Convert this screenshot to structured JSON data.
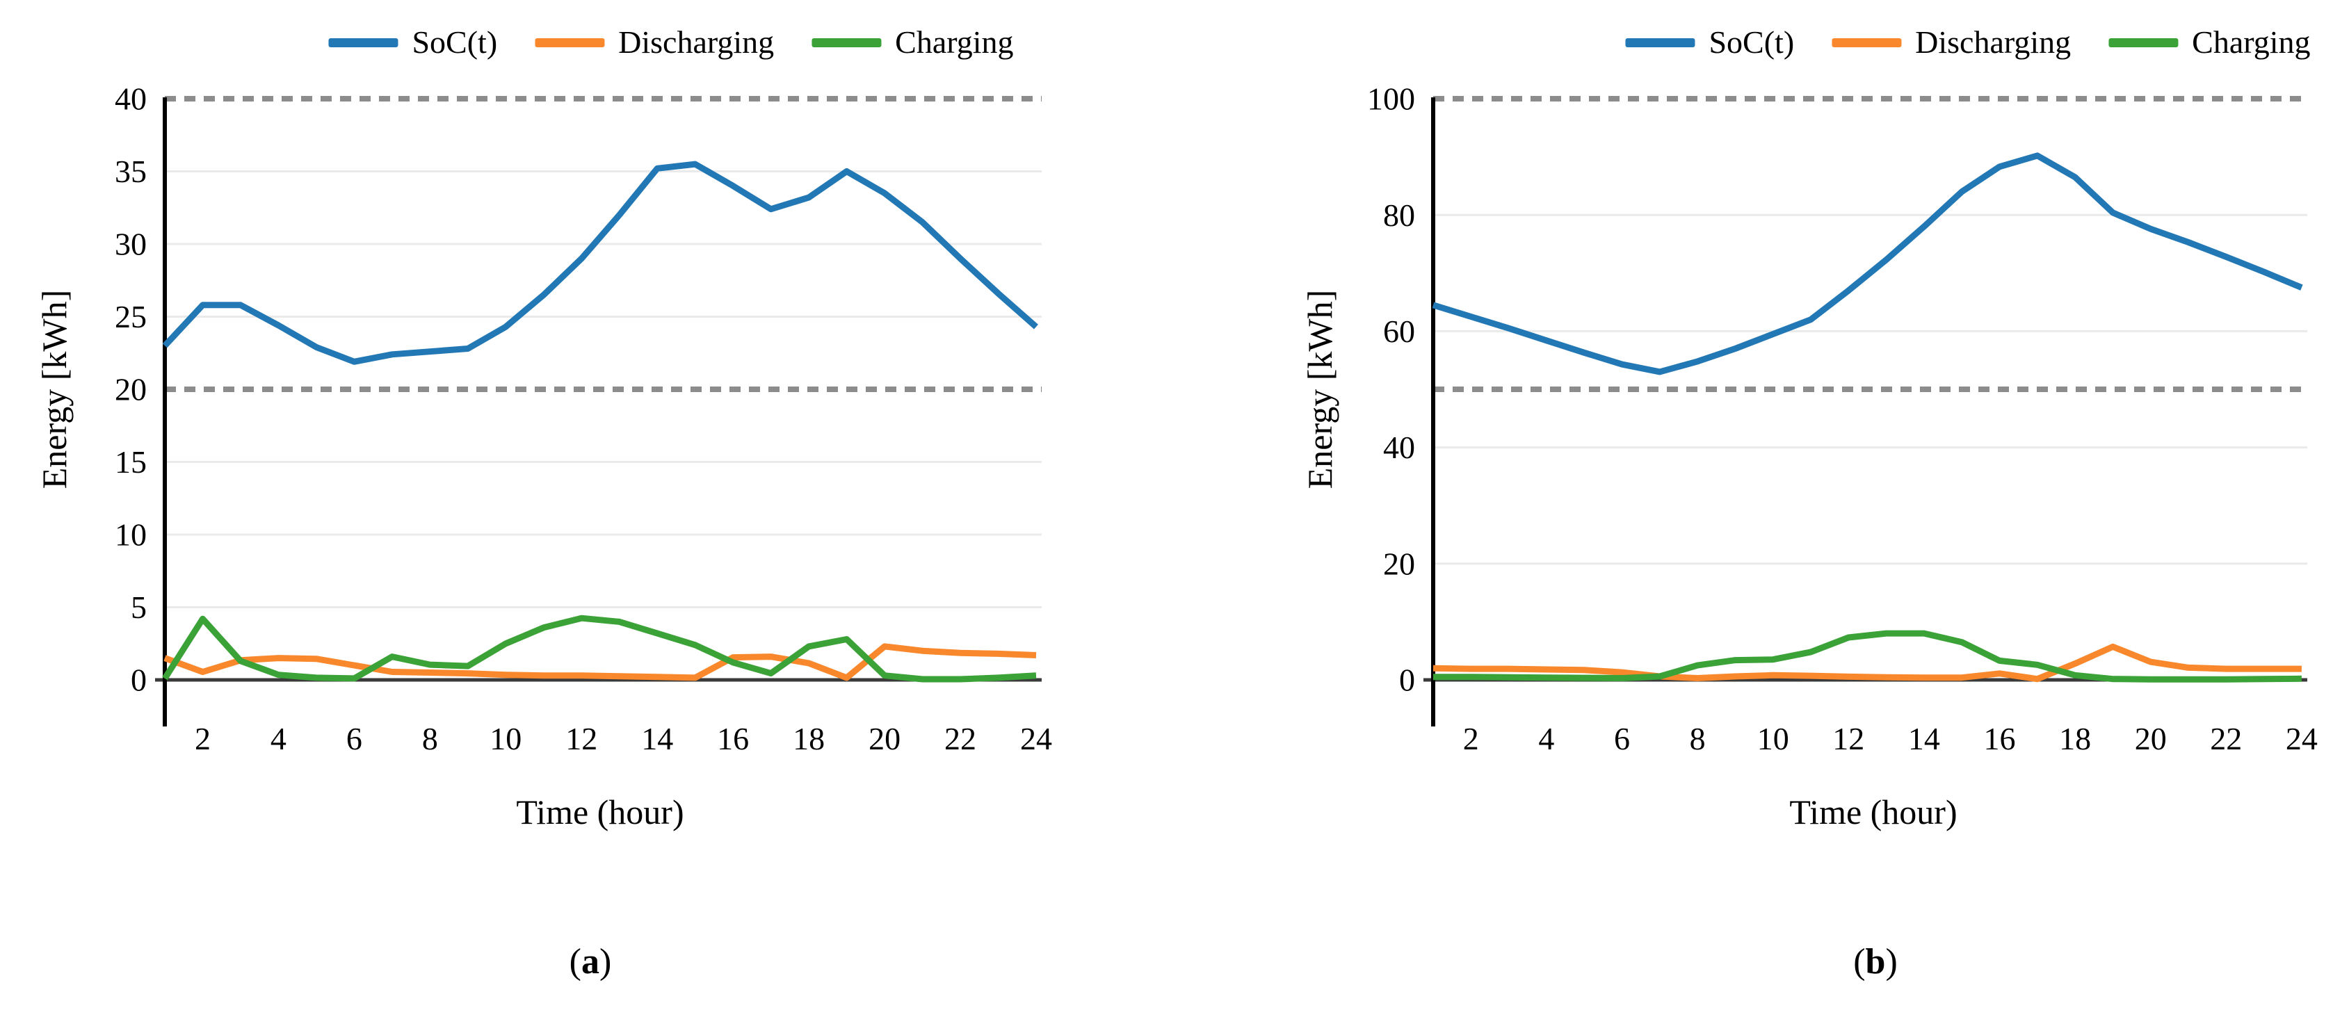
{
  "figure": {
    "background": "#ffffff",
    "description": "Two line charts of battery energy over a day"
  },
  "colors": {
    "soc": "#2277b5",
    "discharging": "#f8882b",
    "charging": "#3aa236",
    "bound_dashed": "#8c8c8c",
    "gridline": "#eaeaea",
    "baseline": "#3a3a3a",
    "axis": "#000000",
    "text": "#000000"
  },
  "legend": {
    "items": [
      {
        "name": "soc",
        "label": "SoC(t)",
        "color": "#2277b5"
      },
      {
        "name": "discharging",
        "label": "Discharging",
        "color": "#f8882b"
      },
      {
        "name": "charging",
        "label": "Charging",
        "color": "#3aa236"
      }
    ]
  },
  "sublabels": {
    "a": {
      "pre": "(",
      "letter": "a",
      "post": ")"
    },
    "b": {
      "pre": "(",
      "letter": "b",
      "post": ")"
    }
  },
  "chart_data": [
    {
      "id": "a",
      "type": "line",
      "title": "",
      "xlabel": "Time (hour)",
      "ylabel": "Energy [kWh]",
      "x": [
        1,
        2,
        3,
        4,
        5,
        6,
        7,
        8,
        9,
        10,
        11,
        12,
        13,
        14,
        15,
        16,
        17,
        18,
        19,
        20,
        21,
        22,
        23,
        24
      ],
      "xticks": [
        2,
        4,
        6,
        8,
        10,
        12,
        14,
        16,
        18,
        20,
        22,
        24
      ],
      "yticks": [
        0,
        5,
        10,
        15,
        20,
        25,
        30,
        35,
        40
      ],
      "ylim": [
        0,
        40
      ],
      "grid": "horizontal-light",
      "bound_lines": [
        20,
        40
      ],
      "legend_position": "top-center",
      "series": [
        {
          "name": "SoC(t)",
          "color": "#2277b5",
          "values": [
            23.0,
            25.8,
            25.8,
            24.4,
            22.9,
            21.9,
            22.4,
            22.6,
            22.8,
            24.3,
            26.5,
            29.0,
            32.0,
            35.2,
            35.5,
            34.0,
            32.4,
            33.2,
            35.0,
            33.5,
            31.5,
            29.0,
            26.6,
            24.3
          ]
        },
        {
          "name": "Discharging",
          "color": "#f8882b",
          "values": [
            1.5,
            0.55,
            1.35,
            1.5,
            1.45,
            1.0,
            0.55,
            0.5,
            0.45,
            0.35,
            0.3,
            0.3,
            0.25,
            0.2,
            0.15,
            1.55,
            1.6,
            1.15,
            0.15,
            2.3,
            2.0,
            1.85,
            1.8,
            1.7
          ]
        },
        {
          "name": "Charging",
          "color": "#3aa236",
          "values": [
            0.1,
            4.2,
            1.3,
            0.35,
            0.15,
            0.1,
            1.6,
            1.05,
            0.95,
            2.5,
            3.6,
            4.25,
            4.0,
            3.2,
            2.4,
            1.2,
            0.45,
            2.3,
            2.8,
            0.3,
            0.05,
            0.05,
            0.15,
            0.3
          ]
        }
      ]
    },
    {
      "id": "b",
      "type": "line",
      "title": "",
      "xlabel": "Time (hour)",
      "ylabel": "Energy [kWh]",
      "x": [
        1,
        2,
        3,
        4,
        5,
        6,
        7,
        8,
        9,
        10,
        11,
        12,
        13,
        14,
        15,
        16,
        17,
        18,
        19,
        20,
        21,
        22,
        23,
        24
      ],
      "xticks": [
        2,
        4,
        6,
        8,
        10,
        12,
        14,
        16,
        18,
        20,
        22,
        24
      ],
      "yticks": [
        0,
        20,
        40,
        60,
        80,
        100
      ],
      "ylim": [
        0,
        100
      ],
      "grid": "horizontal-light",
      "bound_lines": [
        50,
        100
      ],
      "legend_position": "top-center",
      "series": [
        {
          "name": "SoC(t)",
          "color": "#2277b5",
          "values": [
            64.5,
            62.5,
            60.5,
            58.4,
            56.3,
            54.3,
            53.0,
            54.8,
            57.0,
            59.5,
            62.0,
            67.0,
            72.3,
            78.0,
            84.0,
            88.3,
            90.2,
            86.5,
            80.4,
            77.6,
            75.3,
            72.8,
            70.2,
            67.5
          ]
        },
        {
          "name": "Discharging",
          "color": "#f8882b",
          "values": [
            2.0,
            1.9,
            1.9,
            1.8,
            1.7,
            1.3,
            0.6,
            0.3,
            0.6,
            0.8,
            0.7,
            0.55,
            0.45,
            0.4,
            0.4,
            1.1,
            0.15,
            2.8,
            5.7,
            3.1,
            2.1,
            1.9,
            1.9,
            1.9
          ]
        },
        {
          "name": "Charging",
          "color": "#3aa236",
          "values": [
            0.5,
            0.5,
            0.45,
            0.4,
            0.35,
            0.3,
            0.6,
            2.5,
            3.4,
            3.5,
            4.8,
            7.3,
            8.0,
            8.0,
            6.5,
            3.3,
            2.6,
            0.8,
            0.15,
            0.1,
            0.1,
            0.1,
            0.15,
            0.2
          ]
        }
      ]
    }
  ]
}
